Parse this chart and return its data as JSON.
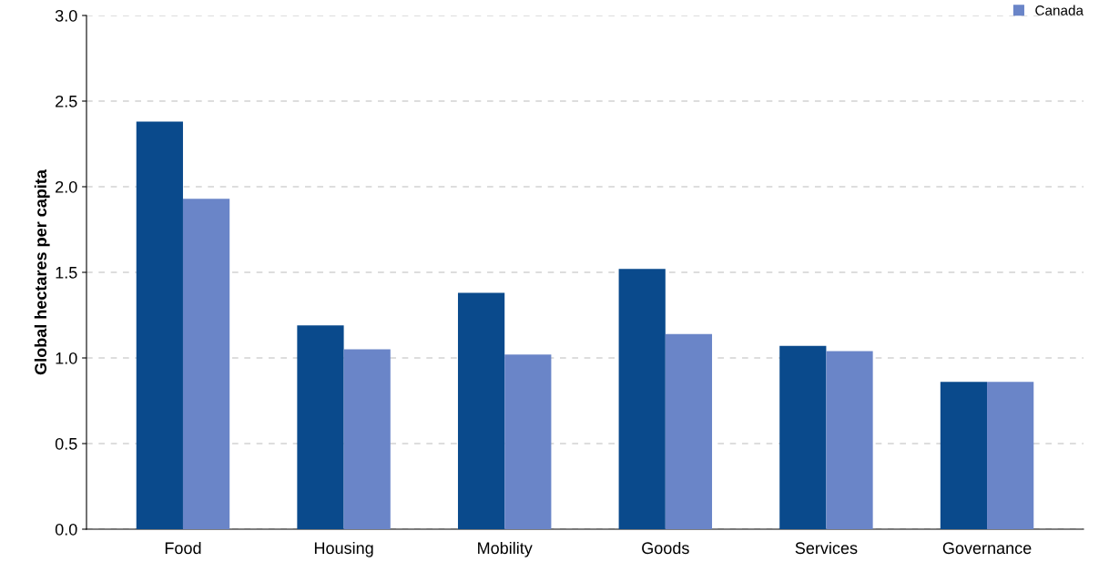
{
  "chart_data": {
    "type": "bar",
    "ylabel": "Global hectares per capita",
    "categories": [
      "Food",
      "Housing",
      "Mobility",
      "Goods",
      "Services",
      "Governance"
    ],
    "series": [
      {
        "color": "#0a4a8c",
        "values": [
          2.38,
          1.19,
          1.38,
          1.52,
          1.07,
          0.86
        ]
      },
      {
        "name": "Canada",
        "color": "#6a85c8",
        "values": [
          1.93,
          1.05,
          1.02,
          1.14,
          1.04,
          0.86
        ]
      }
    ],
    "ylim": [
      0,
      3.0
    ],
    "yticks": [
      {
        "value": 0,
        "label": "0.0"
      },
      {
        "value": 0.5,
        "label": "0.5"
      },
      {
        "value": 1.0,
        "label": "1.0"
      },
      {
        "value": 1.5,
        "label": "1.5"
      },
      {
        "value": 2.0,
        "label": "2.0"
      },
      {
        "value": 2.5,
        "label": "2.5"
      },
      {
        "value": 3.0,
        "label": "3.0"
      }
    ],
    "grid": "y",
    "legend": "top right"
  }
}
